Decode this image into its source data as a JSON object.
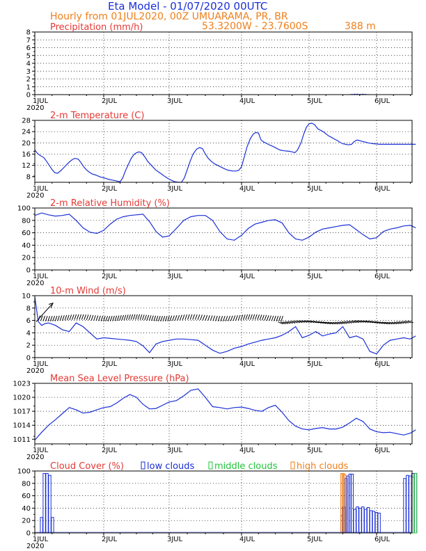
{
  "header": {
    "title": "Eta Model - 01/07/2020 00UTC",
    "subtitle": "Hourly from 01JUL2020, 00Z  UMUARAMA, PR, BR",
    "coords": "53.3200W - 23.7600S",
    "elevation": "388  m"
  },
  "colors": {
    "blue": "#1a2fd6",
    "orange": "#ee7f1a",
    "red": "#e53935",
    "green": "#22c43a"
  },
  "x_labels": [
    "1JUL",
    "2JUL",
    "3JUL",
    "4JUL",
    "5JUL",
    "6JUL"
  ],
  "x_year": "2020",
  "chart_data": [
    {
      "type": "bar",
      "name": "precipitation",
      "title": "Precipitation (mm/h)",
      "ylim": [
        0,
        8
      ],
      "yticks": [
        "0",
        "1",
        "2",
        "3",
        "4",
        "5",
        "6",
        "7",
        "8"
      ],
      "xlim": [
        0,
        5.58
      ],
      "x": [
        4.58,
        4.62,
        4.66,
        4.7,
        4.74,
        4.78,
        4.82,
        4.86
      ],
      "values": [
        0.05,
        0.08,
        0.1,
        0.1,
        0.08,
        0.1,
        0.08,
        0.05
      ]
    },
    {
      "type": "line",
      "name": "temperature",
      "title": "2-m Temperature (C)",
      "ylim": [
        6,
        28
      ],
      "yticks": [
        "8",
        "12",
        "16",
        "20",
        "24",
        "28"
      ],
      "xlim": [
        0,
        5.58
      ],
      "x": [
        0.0,
        0.04,
        0.08,
        0.13,
        0.17,
        0.21,
        0.25,
        0.29,
        0.33,
        0.38,
        0.42,
        0.46,
        0.5,
        0.54,
        0.58,
        0.63,
        0.67,
        0.71,
        0.75,
        0.79,
        0.83,
        0.88,
        0.92,
        0.96,
        1.0,
        1.04,
        1.08,
        1.13,
        1.17,
        1.21,
        1.25,
        1.29,
        1.33,
        1.38,
        1.42,
        1.46,
        1.5,
        1.54,
        1.58,
        1.63,
        1.67,
        1.71,
        1.75,
        1.79,
        1.83,
        1.88,
        1.92,
        1.96,
        2.0,
        2.04,
        2.08,
        2.13,
        2.17,
        2.21,
        2.25,
        2.29,
        2.33,
        2.38,
        2.42,
        2.46,
        2.5,
        2.54,
        2.58,
        2.63,
        2.67,
        2.71,
        2.75,
        2.79,
        2.83,
        2.88,
        2.92,
        2.96,
        3.0,
        3.04,
        3.08,
        3.13,
        3.17,
        3.21,
        3.25,
        3.29,
        3.33,
        3.38,
        3.42,
        3.46,
        3.5,
        3.54,
        3.58,
        3.63,
        3.67,
        3.71,
        3.75,
        3.79,
        3.83,
        3.88,
        3.92,
        3.96,
        4.0,
        4.04,
        4.08,
        4.13,
        4.17,
        4.21,
        4.25,
        4.29,
        4.33,
        4.38,
        4.42,
        4.46,
        4.5,
        4.54,
        4.58,
        4.63,
        4.67,
        4.71,
        4.75,
        4.79,
        4.83,
        4.88,
        4.92,
        4.96,
        5.0,
        5.04,
        5.08,
        5.13,
        5.17,
        5.21,
        5.25,
        5.29,
        5.33,
        5.38,
        5.42,
        5.46,
        5.5,
        5.54,
        5.58
      ],
      "values": [
        17.5,
        16.2,
        15.5,
        14.8,
        13.5,
        12.0,
        10.5,
        9.4,
        9.2,
        10.2,
        11.2,
        12.2,
        13.2,
        14.0,
        14.5,
        14.2,
        13.0,
        11.5,
        10.4,
        9.6,
        9.0,
        8.6,
        8.2,
        7.8,
        7.6,
        7.3,
        7.0,
        6.8,
        6.6,
        6.4,
        6.2,
        7.5,
        10.0,
        12.5,
        14.5,
        15.8,
        16.5,
        16.8,
        16.5,
        15.0,
        13.5,
        12.5,
        11.5,
        10.5,
        9.8,
        9.0,
        8.3,
        7.7,
        7.1,
        6.6,
        6.2,
        6.0,
        6.0,
        7.5,
        10.5,
        13.5,
        16.0,
        17.8,
        18.3,
        18.0,
        16.0,
        14.5,
        13.5,
        12.5,
        12.0,
        11.5,
        11.0,
        10.5,
        10.2,
        10.0,
        10.0,
        10.2,
        11.5,
        15.0,
        18.5,
        21.5,
        23.0,
        23.7,
        23.5,
        21.0,
        20.3,
        19.7,
        19.2,
        18.8,
        18.3,
        17.8,
        17.4,
        17.2,
        17.1,
        17.0,
        16.8,
        16.5,
        17.5,
        20.0,
        23.0,
        25.5,
        26.8,
        27.0,
        26.5,
        25.0,
        24.5,
        24.0,
        23.2,
        22.5,
        22.0,
        21.3,
        20.8,
        20.2,
        19.7,
        19.5,
        19.3,
        19.5,
        20.5,
        21.0,
        20.8,
        20.5,
        20.3,
        20.0,
        19.8,
        19.7,
        19.6,
        19.5,
        19.5,
        19.5,
        19.5,
        19.5,
        19.5,
        19.5,
        19.5,
        19.5,
        19.5,
        19.5,
        19.5,
        19.5,
        19.5
      ]
    },
    {
      "type": "line",
      "name": "humidity",
      "title": "2-m Relative Humidity (%)",
      "ylim": [
        0,
        100
      ],
      "yticks": [
        "0",
        "20",
        "40",
        "60",
        "80",
        "100"
      ],
      "xlim": [
        0,
        5.58
      ],
      "x": [
        0.0,
        0.1,
        0.2,
        0.3,
        0.4,
        0.5,
        0.6,
        0.7,
        0.8,
        0.9,
        1.0,
        1.1,
        1.2,
        1.3,
        1.4,
        1.5,
        1.6,
        1.7,
        1.8,
        1.9,
        2.0,
        2.1,
        2.2,
        2.3,
        2.4,
        2.5,
        2.6,
        2.7,
        2.8,
        2.9,
        3.0,
        3.1,
        3.2,
        3.3,
        3.4,
        3.5,
        3.6,
        3.7,
        3.8,
        3.9,
        4.0,
        4.1,
        4.2,
        4.3,
        4.4,
        4.5,
        4.6,
        4.7,
        4.8,
        4.9,
        5.0,
        5.1,
        5.2,
        5.3,
        5.4,
        5.5,
        5.58
      ],
      "values": [
        88,
        92,
        89,
        87,
        88,
        90,
        80,
        68,
        61,
        59,
        64,
        74,
        82,
        86,
        88,
        89,
        90,
        78,
        62,
        53,
        55,
        67,
        80,
        86,
        88,
        88,
        80,
        62,
        50,
        48,
        56,
        67,
        74,
        77,
        80,
        81,
        76,
        60,
        50,
        48,
        53,
        61,
        66,
        68,
        70,
        72,
        73,
        65,
        57,
        50,
        52,
        62,
        66,
        68,
        71,
        72,
        68
      ]
    },
    {
      "type": "line",
      "name": "wind",
      "title": "10-m Wind (m/s)",
      "ylim": [
        0,
        10
      ],
      "yticks": [
        "0",
        "2",
        "4",
        "6",
        "8",
        "10"
      ],
      "xlim": [
        0,
        5.58
      ],
      "x": [
        0.0,
        0.05,
        0.1,
        0.15,
        0.2,
        0.3,
        0.4,
        0.5,
        0.6,
        0.7,
        0.8,
        0.9,
        1.0,
        1.1,
        1.2,
        1.3,
        1.4,
        1.5,
        1.6,
        1.7,
        1.8,
        1.9,
        2.0,
        2.1,
        2.2,
        2.3,
        2.4,
        2.5,
        2.6,
        2.7,
        2.8,
        2.9,
        3.0,
        3.1,
        3.2,
        3.3,
        3.4,
        3.5,
        3.6,
        3.7,
        3.8,
        3.9,
        4.0,
        4.1,
        4.2,
        4.3,
        4.4,
        4.5,
        4.6,
        4.7,
        4.8,
        4.9,
        5.0,
        5.1,
        5.2,
        5.3,
        5.4,
        5.5,
        5.58
      ],
      "values": [
        9.8,
        5.8,
        5.2,
        5.5,
        5.6,
        5.2,
        4.5,
        4.2,
        5.6,
        5.0,
        4.0,
        3.0,
        3.2,
        3.1,
        3.0,
        2.9,
        2.8,
        2.6,
        1.9,
        0.8,
        2.2,
        2.6,
        2.8,
        3.0,
        3.0,
        2.9,
        2.8,
        2.0,
        1.2,
        0.7,
        1.0,
        1.5,
        1.8,
        2.2,
        2.5,
        2.8,
        3.0,
        3.2,
        3.6,
        4.2,
        5.0,
        3.2,
        3.6,
        4.2,
        3.5,
        3.8,
        4.0,
        5.0,
        3.2,
        3.5,
        3.0,
        1.0,
        0.6,
        2.0,
        2.8,
        3.0,
        3.2,
        3.0,
        3.5
      ],
      "barb_xlim": [
        0.05,
        5.55
      ],
      "barb_speed_mean": 6.0
    },
    {
      "type": "line",
      "name": "pressure",
      "title": "Mean Sea Level Pressure (hPa)",
      "ylim": [
        1010,
        1023
      ],
      "yticks": [
        "1011",
        "1014",
        "1017",
        "1020",
        "1023"
      ],
      "xlim": [
        0,
        5.58
      ],
      "x": [
        0.0,
        0.1,
        0.2,
        0.3,
        0.4,
        0.5,
        0.6,
        0.7,
        0.8,
        0.9,
        1.0,
        1.1,
        1.2,
        1.3,
        1.4,
        1.5,
        1.6,
        1.7,
        1.8,
        1.9,
        2.0,
        2.1,
        2.2,
        2.3,
        2.4,
        2.5,
        2.6,
        2.7,
        2.8,
        2.9,
        3.0,
        3.1,
        3.2,
        3.3,
        3.4,
        3.5,
        3.6,
        3.7,
        3.8,
        3.9,
        4.0,
        4.1,
        4.2,
        4.3,
        4.4,
        4.5,
        4.6,
        4.7,
        4.8,
        4.9,
        5.0,
        5.1,
        5.2,
        5.3,
        5.4,
        5.5,
        5.58
      ],
      "values": [
        1010.8,
        1012.5,
        1014.0,
        1015.2,
        1016.5,
        1017.8,
        1017.3,
        1016.6,
        1016.8,
        1017.3,
        1017.8,
        1018.0,
        1018.8,
        1019.8,
        1020.6,
        1020.0,
        1018.5,
        1017.5,
        1017.6,
        1018.3,
        1019.0,
        1019.3,
        1020.3,
        1021.5,
        1021.8,
        1020.0,
        1018.0,
        1017.8,
        1017.5,
        1017.8,
        1017.9,
        1017.6,
        1017.2,
        1017.0,
        1017.8,
        1018.3,
        1016.8,
        1015.0,
        1013.8,
        1013.2,
        1013.0,
        1013.3,
        1013.5,
        1013.2,
        1013.2,
        1013.6,
        1014.5,
        1015.5,
        1014.8,
        1013.2,
        1012.6,
        1012.4,
        1012.5,
        1012.2,
        1011.9,
        1012.3,
        1013.0
      ]
    },
    {
      "type": "bar",
      "name": "cloud_cover",
      "title": "Cloud Cover (%)",
      "legend": [
        {
          "label": "low clouds",
          "color": "#1a2fd6"
        },
        {
          "label": "middle clouds",
          "color": "#22c43a"
        },
        {
          "label": "high clouds",
          "color": "#ee7f1a"
        }
      ],
      "ylim": [
        0,
        100
      ],
      "yticks": [
        "0",
        "20",
        "40",
        "60",
        "80",
        "100"
      ],
      "xlim": [
        0,
        5.58
      ],
      "bar_width": 0.03,
      "series": [
        {
          "name": "low clouds",
          "x": [
            0.08,
            0.12,
            0.16,
            0.2,
            0.24,
            4.47,
            4.5,
            4.53,
            4.56,
            4.59,
            4.62,
            4.66,
            4.7,
            4.74,
            4.78,
            4.82,
            4.86,
            4.9,
            4.94,
            4.98,
            5.02,
            5.4,
            5.44,
            5.48,
            5.52,
            5.56
          ],
          "values": [
            25,
            96,
            96,
            93,
            25,
            28,
            42,
            88,
            92,
            95,
            95,
            38,
            42,
            40,
            42,
            38,
            41,
            36,
            35,
            33,
            32,
            88,
            93,
            92,
            96,
            96
          ]
        },
        {
          "name": "middle clouds",
          "x": [
            5.52,
            5.56
          ],
          "values": [
            90,
            96
          ]
        },
        {
          "name": "high clouds",
          "x": [
            4.47,
            4.49,
            4.51
          ],
          "values": [
            96,
            96,
            94
          ]
        }
      ]
    }
  ]
}
